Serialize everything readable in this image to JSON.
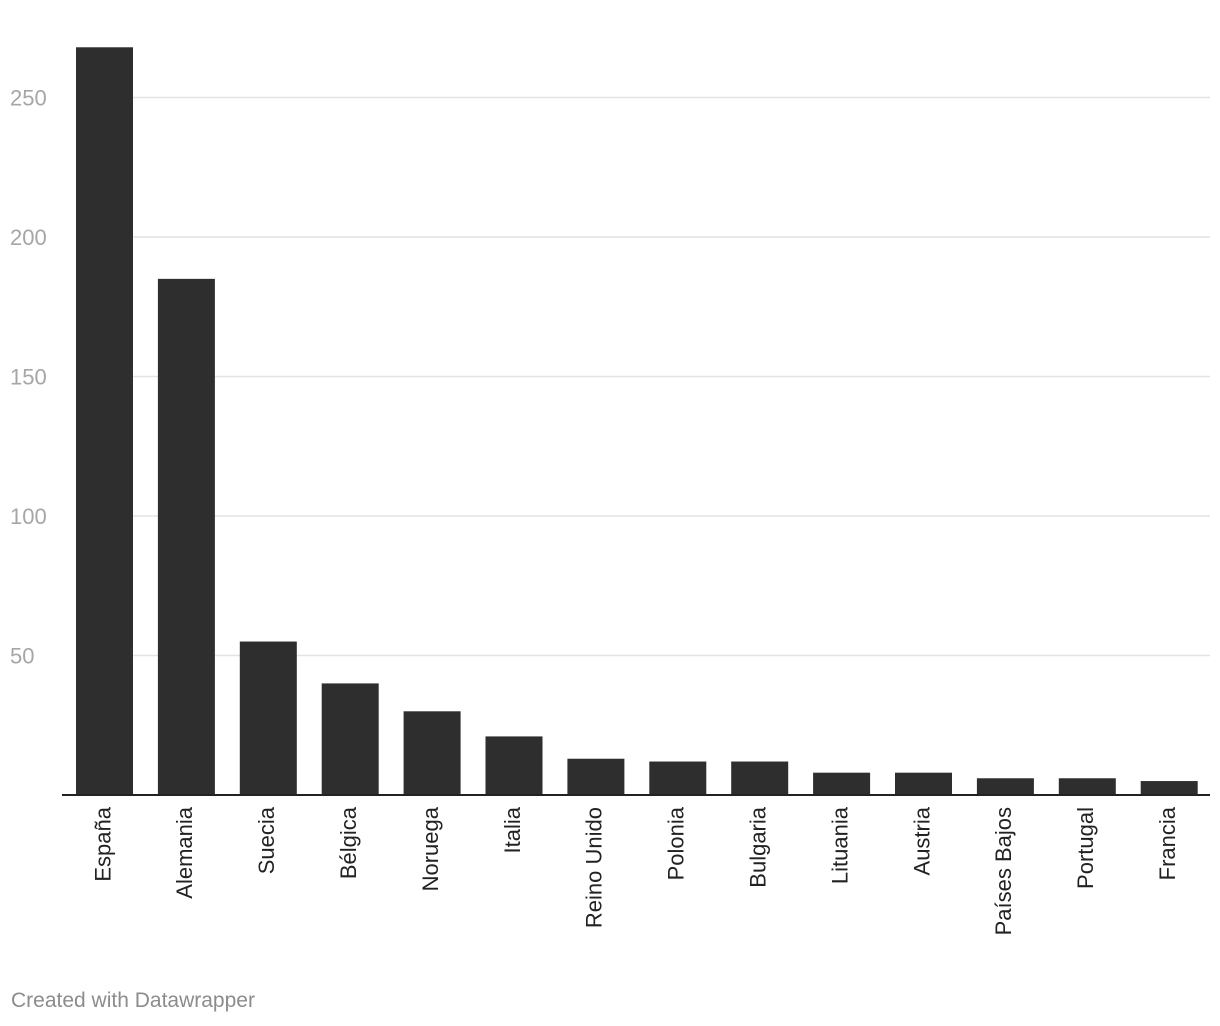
{
  "chart_data": {
    "type": "bar",
    "categories": [
      "España",
      "Alemania",
      "Suecia",
      "Bélgica",
      "Noruega",
      "Italia",
      "Reino Unido",
      "Polonia",
      "Bulgaria",
      "Lituania",
      "Austria",
      "Países Bajos",
      "Portugal",
      "Francia"
    ],
    "values": [
      268,
      185,
      55,
      40,
      30,
      21,
      13,
      12,
      12,
      8,
      8,
      6,
      6,
      5
    ],
    "title": "",
    "xlabel": "",
    "ylabel": "",
    "ylim": [
      0,
      268
    ],
    "yticks": [
      50,
      100,
      150,
      200,
      250
    ],
    "grid": true,
    "bar_color": "#2e2e2e",
    "grid_color": "#e3e3e3"
  },
  "footer": {
    "credit": "Created with Datawrapper"
  }
}
